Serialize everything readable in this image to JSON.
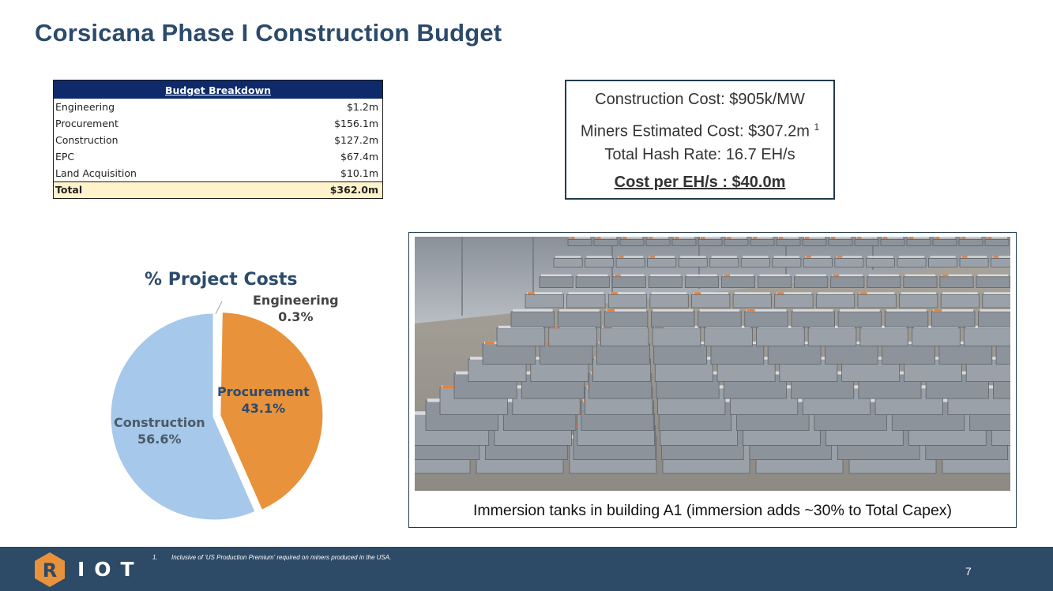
{
  "slide": {
    "title": "Corsicana Phase I Construction Budget",
    "page_number": "7"
  },
  "budget": {
    "header": "Budget Breakdown",
    "rows": [
      {
        "label": "Engineering",
        "value": "$1.2m"
      },
      {
        "label": "Procurement",
        "value": "$156.1m"
      },
      {
        "label": "Construction",
        "value": "$127.2m"
      },
      {
        "label": "EPC",
        "value": "$67.4m"
      },
      {
        "label": "Land Acquisition",
        "value": "$10.1m"
      }
    ],
    "total": {
      "label": "Total",
      "value": "$362.0m"
    }
  },
  "costs": {
    "construction_cost": "Construction Cost: $905k/MW",
    "miners_cost": "Miners Estimated Cost: $307.2m",
    "miners_footnote_mark": "1",
    "hash_rate": "Total Hash Rate: 16.7 EH/s",
    "cost_per_ehs": "Cost per EH/s : $40.0m"
  },
  "chart_data": {
    "type": "pie",
    "title": "% Project Costs",
    "slices": [
      {
        "name": "Engineering",
        "value": 0.3,
        "label": "0.3%",
        "color": "#ffffff"
      },
      {
        "name": "Procurement",
        "value": 43.1,
        "label": "43.1%",
        "color": "#e8923c"
      },
      {
        "name": "Construction",
        "value": 56.6,
        "label": "56.6%",
        "color": "#a6c8ea"
      }
    ]
  },
  "photo": {
    "caption": "Immersion tanks in building A1 (immersion adds ~30% to Total Capex)"
  },
  "footer": {
    "logo_text": "IOT",
    "logo_letter": "R",
    "footnote_number": "1.",
    "footnote_text": "Inclusive of 'US Production Premium' required on miners produced in the USA."
  },
  "colors": {
    "title": "#2c4a6b",
    "footer_bg": "#2d4a66",
    "table_header_bg": "#0e2a6b",
    "total_row_bg": "#fff3cc",
    "logo_accent": "#e8923c"
  }
}
